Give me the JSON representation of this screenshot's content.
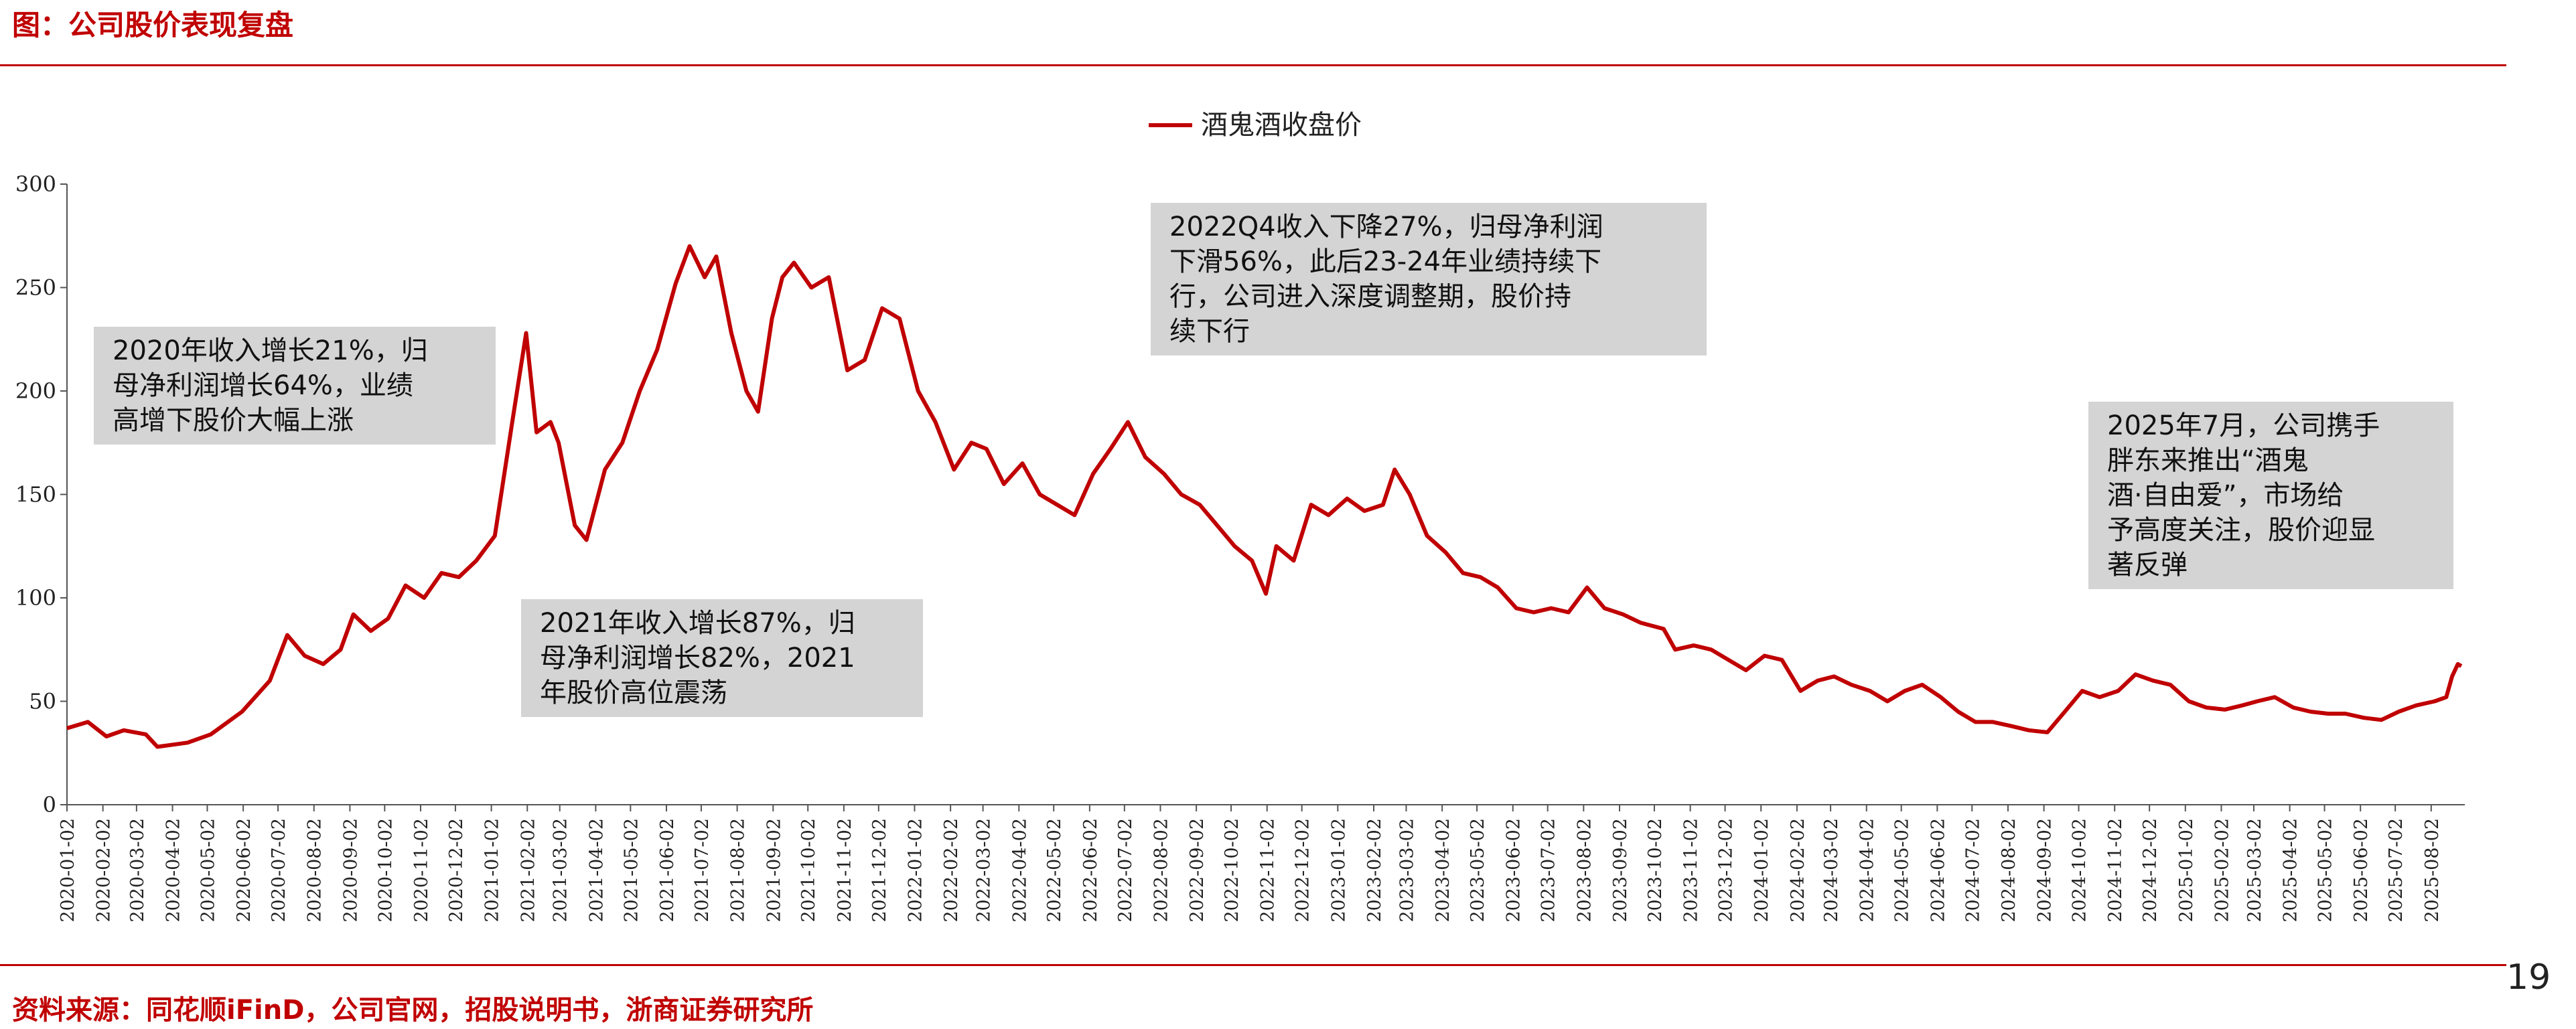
{
  "header": {
    "title": "图：公司股价表现复盘"
  },
  "footer": {
    "source": "资料来源：同花顺iFinD，公司官网，招股说明书，浙商证券研究所",
    "page_number": "19"
  },
  "colors": {
    "accent": "#c00000",
    "line": "#c00000",
    "annotation_bg": "#d4d4d4"
  },
  "annotations": [
    {
      "text": "2020年收入增长21%，归\n母净利润增长64%，业绩\n高增下股价大幅上涨"
    },
    {
      "text": "2021年收入增长87%，归\n母净利润增长82%，2021\n年股价高位震荡"
    },
    {
      "text": "2022Q4收入下降27%，归母净利润\n下滑56%，此后23-24年业绩持续下\n行，公司进入深度调整期，股价持\n续下行"
    },
    {
      "text": "2025年7月，公司携手\n胖东来推出“酒鬼\n酒·自由爱”，市场给\n予高度关注，股价迎显\n著反弹"
    }
  ],
  "chart_data": {
    "type": "line",
    "title": "",
    "xlabel": "",
    "ylabel": "",
    "ylim": [
      0,
      300
    ],
    "yticks": [
      "0",
      "50",
      "100",
      "150",
      "200",
      "250",
      "300"
    ],
    "legend_position": "top-center",
    "grid": false,
    "x_tick_labels": [
      "2020-01-02",
      "2020-02-02",
      "2020-03-02",
      "2020-04-02",
      "2020-05-02",
      "2020-06-02",
      "2020-07-02",
      "2020-08-02",
      "2020-09-02",
      "2020-10-02",
      "2020-11-02",
      "2020-12-02",
      "2021-01-02",
      "2021-02-02",
      "2021-03-02",
      "2021-04-02",
      "2021-05-02",
      "2021-06-02",
      "2021-07-02",
      "2021-08-02",
      "2021-09-02",
      "2021-10-02",
      "2021-11-02",
      "2021-12-02",
      "2022-01-02",
      "2022-02-02",
      "2022-03-02",
      "2022-04-02",
      "2022-05-02",
      "2022-06-02",
      "2022-07-02",
      "2022-08-02",
      "2022-09-02",
      "2022-10-02",
      "2022-11-02",
      "2022-12-02",
      "2023-01-02",
      "2023-02-02",
      "2023-03-02",
      "2023-04-02",
      "2023-05-02",
      "2023-06-02",
      "2023-07-02",
      "2023-08-02",
      "2023-09-02",
      "2023-10-02",
      "2023-11-02",
      "2023-12-02",
      "2024-01-02",
      "2024-02-02",
      "2024-03-02",
      "2024-04-02",
      "2024-05-02",
      "2024-06-02",
      "2024-07-02",
      "2024-08-02",
      "2024-09-02",
      "2024-10-02",
      "2024-11-02",
      "2024-12-02",
      "2025-01-02",
      "2025-02-02",
      "2025-03-02",
      "2025-04-02",
      "2025-05-02",
      "2025-06-02",
      "2025-07-02",
      "2025-08-02"
    ],
    "series": [
      {
        "name": "酒鬼酒收盘价",
        "color": "#c00000",
        "points": [
          [
            "2020-01-02",
            37
          ],
          [
            "2020-01-20",
            40
          ],
          [
            "2020-02-05",
            33
          ],
          [
            "2020-02-20",
            36
          ],
          [
            "2020-03-10",
            34
          ],
          [
            "2020-03-20",
            28
          ],
          [
            "2020-04-15",
            30
          ],
          [
            "2020-05-05",
            34
          ],
          [
            "2020-06-01",
            45
          ],
          [
            "2020-06-25",
            60
          ],
          [
            "2020-07-10",
            82
          ],
          [
            "2020-07-25",
            72
          ],
          [
            "2020-08-10",
            68
          ],
          [
            "2020-08-25",
            75
          ],
          [
            "2020-09-05",
            92
          ],
          [
            "2020-09-20",
            84
          ],
          [
            "2020-10-05",
            90
          ],
          [
            "2020-10-20",
            106
          ],
          [
            "2020-11-05",
            100
          ],
          [
            "2020-11-20",
            112
          ],
          [
            "2020-12-05",
            110
          ],
          [
            "2020-12-20",
            118
          ],
          [
            "2021-01-05",
            130
          ],
          [
            "2021-01-20",
            185
          ],
          [
            "2021-02-01",
            228
          ],
          [
            "2021-02-10",
            180
          ],
          [
            "2021-02-22",
            185
          ],
          [
            "2021-03-01",
            175
          ],
          [
            "2021-03-15",
            135
          ],
          [
            "2021-03-25",
            128
          ],
          [
            "2021-04-10",
            162
          ],
          [
            "2021-04-25",
            175
          ],
          [
            "2021-05-10",
            200
          ],
          [
            "2021-05-25",
            220
          ],
          [
            "2021-06-10",
            252
          ],
          [
            "2021-06-22",
            270
          ],
          [
            "2021-07-05",
            255
          ],
          [
            "2021-07-15",
            265
          ],
          [
            "2021-07-28",
            228
          ],
          [
            "2021-08-10",
            200
          ],
          [
            "2021-08-20",
            190
          ],
          [
            "2021-09-01",
            235
          ],
          [
            "2021-09-10",
            255
          ],
          [
            "2021-09-20",
            262
          ],
          [
            "2021-10-05",
            250
          ],
          [
            "2021-10-20",
            255
          ],
          [
            "2021-11-05",
            210
          ],
          [
            "2021-11-20",
            215
          ],
          [
            "2021-12-05",
            240
          ],
          [
            "2021-12-20",
            235
          ],
          [
            "2022-01-05",
            200
          ],
          [
            "2022-01-20",
            185
          ],
          [
            "2022-02-05",
            162
          ],
          [
            "2022-02-20",
            175
          ],
          [
            "2022-03-05",
            172
          ],
          [
            "2022-03-20",
            155
          ],
          [
            "2022-04-05",
            165
          ],
          [
            "2022-04-20",
            150
          ],
          [
            "2022-05-05",
            145
          ],
          [
            "2022-05-20",
            140
          ],
          [
            "2022-06-05",
            160
          ],
          [
            "2022-06-20",
            172
          ],
          [
            "2022-07-05",
            185
          ],
          [
            "2022-07-20",
            168
          ],
          [
            "2022-08-05",
            160
          ],
          [
            "2022-08-20",
            150
          ],
          [
            "2022-09-05",
            145
          ],
          [
            "2022-09-20",
            135
          ],
          [
            "2022-10-05",
            125
          ],
          [
            "2022-10-20",
            118
          ],
          [
            "2022-11-01",
            102
          ],
          [
            "2022-11-10",
            125
          ],
          [
            "2022-11-25",
            118
          ],
          [
            "2022-12-10",
            145
          ],
          [
            "2022-12-25",
            140
          ],
          [
            "2023-01-10",
            148
          ],
          [
            "2023-01-25",
            142
          ],
          [
            "2023-02-10",
            145
          ],
          [
            "2023-02-20",
            162
          ],
          [
            "2023-03-05",
            150
          ],
          [
            "2023-03-20",
            130
          ],
          [
            "2023-04-05",
            122
          ],
          [
            "2023-04-20",
            112
          ],
          [
            "2023-05-05",
            110
          ],
          [
            "2023-05-20",
            105
          ],
          [
            "2023-06-05",
            95
          ],
          [
            "2023-06-20",
            93
          ],
          [
            "2023-07-05",
            95
          ],
          [
            "2023-07-20",
            93
          ],
          [
            "2023-08-05",
            105
          ],
          [
            "2023-08-20",
            95
          ],
          [
            "2023-09-05",
            92
          ],
          [
            "2023-09-20",
            88
          ],
          [
            "2023-10-10",
            85
          ],
          [
            "2023-10-20",
            75
          ],
          [
            "2023-11-05",
            77
          ],
          [
            "2023-11-20",
            75
          ],
          [
            "2023-12-05",
            70
          ],
          [
            "2023-12-20",
            65
          ],
          [
            "2024-01-05",
            72
          ],
          [
            "2024-01-20",
            70
          ],
          [
            "2024-02-05",
            55
          ],
          [
            "2024-02-20",
            60
          ],
          [
            "2024-03-05",
            62
          ],
          [
            "2024-03-20",
            58
          ],
          [
            "2024-04-05",
            55
          ],
          [
            "2024-04-20",
            50
          ],
          [
            "2024-05-05",
            55
          ],
          [
            "2024-05-20",
            58
          ],
          [
            "2024-06-05",
            52
          ],
          [
            "2024-06-20",
            45
          ],
          [
            "2024-07-05",
            40
          ],
          [
            "2024-07-20",
            40
          ],
          [
            "2024-08-05",
            38
          ],
          [
            "2024-08-20",
            36
          ],
          [
            "2024-09-05",
            35
          ],
          [
            "2024-09-20",
            45
          ],
          [
            "2024-10-05",
            55
          ],
          [
            "2024-10-20",
            52
          ],
          [
            "2024-11-05",
            55
          ],
          [
            "2024-11-20",
            63
          ],
          [
            "2024-12-05",
            60
          ],
          [
            "2024-12-20",
            58
          ],
          [
            "2025-01-05",
            50
          ],
          [
            "2025-01-20",
            47
          ],
          [
            "2025-02-05",
            46
          ],
          [
            "2025-02-20",
            48
          ],
          [
            "2025-03-05",
            50
          ],
          [
            "2025-03-20",
            52
          ],
          [
            "2025-04-05",
            47
          ],
          [
            "2025-04-20",
            45
          ],
          [
            "2025-05-05",
            44
          ],
          [
            "2025-05-20",
            44
          ],
          [
            "2025-06-05",
            42
          ],
          [
            "2025-06-20",
            41
          ],
          [
            "2025-07-05",
            45
          ],
          [
            "2025-07-20",
            48
          ],
          [
            "2025-08-05",
            50
          ],
          [
            "2025-08-15",
            52
          ],
          [
            "2025-08-20",
            62
          ],
          [
            "2025-08-25",
            68
          ],
          [
            "2025-08-28",
            67
          ]
        ]
      }
    ]
  }
}
